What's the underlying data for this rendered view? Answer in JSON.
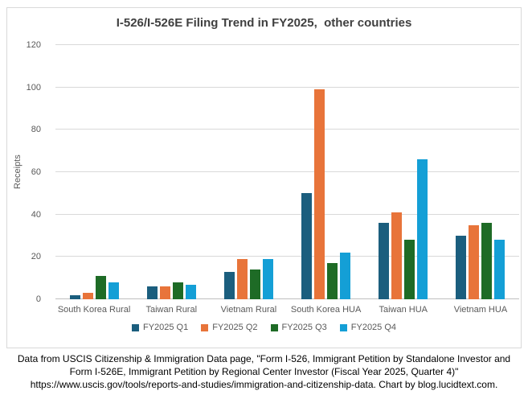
{
  "chart_data": {
    "type": "bar",
    "title": "I-526/I-526E Filing Trend in FY2025,  other countries",
    "ylabel": "Receipts",
    "categories": [
      "South Korea Rural",
      "Taiwan Rural",
      "Vietnam Rural",
      "South Korea HUA",
      "Taiwan HUA",
      "Vietnam HUA"
    ],
    "series": [
      {
        "name": "FY2025 Q1",
        "color": "#1B5E7E",
        "values": [
          2,
          6,
          13,
          50,
          36,
          30
        ]
      },
      {
        "name": "FY2025 Q2",
        "color": "#E8743A",
        "values": [
          3,
          6,
          19,
          99,
          41,
          35
        ]
      },
      {
        "name": "FY2025 Q3",
        "color": "#1E6B26",
        "values": [
          11,
          8,
          14,
          17,
          28,
          36
        ]
      },
      {
        "name": "FY2025 Q4",
        "color": "#149FD6",
        "values": [
          8,
          7,
          19,
          22,
          66,
          28
        ]
      }
    ],
    "ylim": [
      0,
      120
    ],
    "yticks": [
      0,
      20,
      40,
      60,
      80,
      100,
      120
    ],
    "grid": true,
    "legend_position": "bottom",
    "colors": {
      "gridline": "#d9d9d9",
      "axis_line": "#bfbfbf",
      "axis_text": "#595959",
      "title_text": "#404040"
    }
  },
  "footer": {
    "lines": [
      "Data from USCIS Citizenship & Immigration Data page, \"Form I-526, Immigrant Petition by Standalone Investor and",
      "Form I-526E, Immigrant Petition by Regional Center Investor (Fiscal Year 2025, Quarter 4)\"",
      "https://www.uscis.gov/tools/reports-and-studies/immigration-and-citizenship-data. Chart by blog.lucidtext.com."
    ]
  }
}
